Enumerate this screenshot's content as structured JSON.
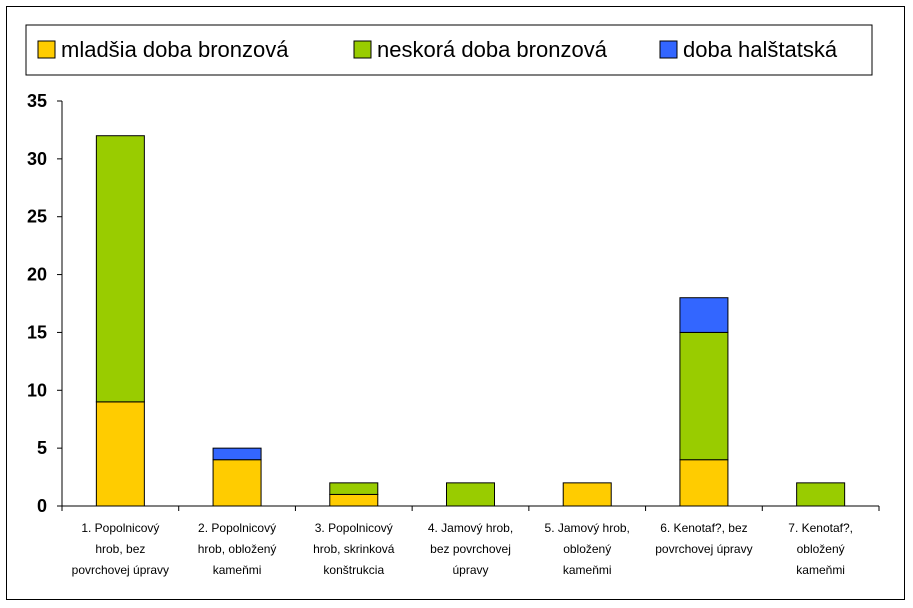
{
  "chart_data": {
    "type": "bar",
    "stacked": true,
    "title": "",
    "xlabel": "",
    "ylabel": "",
    "ylim": [
      0,
      35
    ],
    "yticks": [
      0,
      5,
      10,
      15,
      20,
      25,
      30,
      35
    ],
    "grid": false,
    "legend_position": "top",
    "categories": [
      [
        "1. Popolnicový",
        "hrob, bez",
        "povrchovej úpravy"
      ],
      [
        "2. Popolnicový",
        "hrob, obložený",
        "kameňmi"
      ],
      [
        "3. Popolnicový",
        "hrob, skrinková",
        "konštrukcia"
      ],
      [
        "4. Jamový hrob,",
        "bez povrchovej",
        "úpravy"
      ],
      [
        "5. Jamový hrob,",
        "obložený",
        "kameňmi"
      ],
      [
        "6. Kenotaf?, bez",
        "povrchovej úpravy"
      ],
      [
        "7. Kenotaf?,",
        "obložený",
        "kameňmi"
      ]
    ],
    "series": [
      {
        "name": "mladšia doba bronzová",
        "color": "#FFCC00",
        "values": [
          9,
          4,
          1,
          0,
          2,
          4,
          0
        ]
      },
      {
        "name": "neskorá doba bronzová",
        "color": "#99CC00",
        "values": [
          23,
          0,
          1,
          2,
          0,
          11,
          2
        ]
      },
      {
        "name": "doba halštatská",
        "color": "#3366FF",
        "values": [
          0,
          1,
          0,
          0,
          0,
          3,
          0
        ]
      }
    ]
  }
}
